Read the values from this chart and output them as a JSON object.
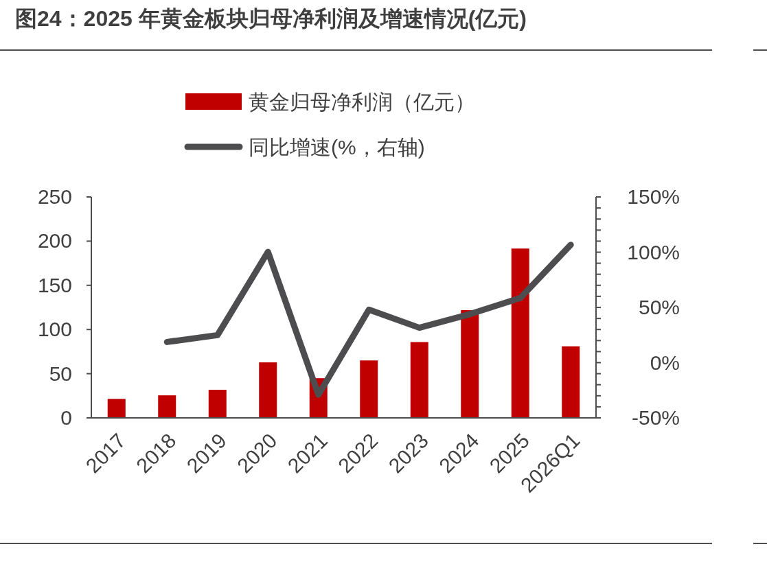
{
  "chart_data": {
    "type": "bar",
    "title": "图24：2025 年黄金板块归母净利润及增速情况(亿元)",
    "categories": [
      "2017",
      "2018",
      "2019",
      "2020",
      "2021",
      "2022",
      "2023",
      "2024",
      "2025",
      "2026Q1"
    ],
    "series": [
      {
        "name": "黄金归母净利润（亿元）",
        "color": "#c00000",
        "values": [
          21.5,
          25.5,
          31.8,
          62.8,
          44.9,
          65,
          85.8,
          121.9,
          191.6,
          81
        ]
      },
      {
        "name": "同比增速(%，右轴)",
        "type": "line",
        "axis": "y2",
        "color": "#4d4d4f",
        "line_style": "solid",
        "values": [
          null,
          18.7,
          24.9,
          100.3,
          -29,
          48,
          31.6,
          43.9,
          58.5,
          106.7
        ]
      }
    ],
    "ylim": [
      0,
      250
    ],
    "yticks": [
      0,
      50,
      100,
      150,
      200,
      250
    ],
    "y2lim": [
      -50,
      150
    ],
    "y2ticks": [
      {
        "value": -50,
        "label": "-50%"
      },
      {
        "value": -40,
        "label": null
      },
      {
        "value": -30,
        "label": null
      },
      {
        "value": -20,
        "label": null
      },
      {
        "value": -10,
        "label": null
      },
      {
        "value": 0,
        "label": "0%"
      },
      {
        "value": 10,
        "label": null
      },
      {
        "value": 20,
        "label": null
      },
      {
        "value": 30,
        "label": null
      },
      {
        "value": 40,
        "label": null
      },
      {
        "value": 50,
        "label": "50%"
      },
      {
        "value": 60,
        "label": null
      },
      {
        "value": 70,
        "label": null
      },
      {
        "value": 80,
        "label": null
      },
      {
        "value": 90,
        "label": null
      },
      {
        "value": 100,
        "label": "100%"
      },
      {
        "value": 110,
        "label": null
      },
      {
        "value": 120,
        "label": null
      },
      {
        "value": 130,
        "label": null
      },
      {
        "value": 140,
        "label": null
      },
      {
        "value": 150,
        "label": "150%"
      }
    ],
    "legend": "top",
    "grid": false
  }
}
